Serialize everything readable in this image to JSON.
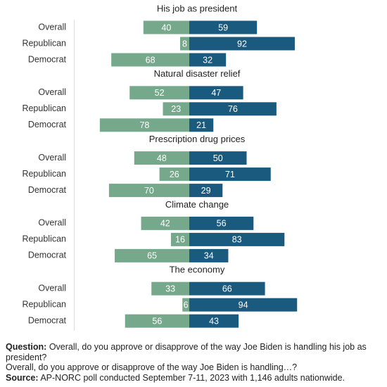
{
  "chart_data": [
    {
      "type": "diverging-bar",
      "title": "His job as president",
      "categories": [
        "Overall",
        "Republican",
        "Democrat"
      ],
      "series": [
        {
          "color": "#76a98b",
          "values": [
            40,
            8,
            68
          ]
        },
        {
          "color": "#1b5a7f",
          "values": [
            59,
            92,
            32
          ]
        }
      ]
    },
    {
      "type": "diverging-bar",
      "title": "Natural disaster relief",
      "categories": [
        "Overall",
        "Republican",
        "Democrat"
      ],
      "series": [
        {
          "color": "#76a98b",
          "values": [
            52,
            23,
            78
          ]
        },
        {
          "color": "#1b5a7f",
          "values": [
            47,
            76,
            21
          ]
        }
      ]
    },
    {
      "type": "diverging-bar",
      "title": "Prescription drug prices",
      "categories": [
        "Overall",
        "Republican",
        "Democrat"
      ],
      "series": [
        {
          "color": "#76a98b",
          "values": [
            48,
            26,
            70
          ]
        },
        {
          "color": "#1b5a7f",
          "values": [
            50,
            71,
            29
          ]
        }
      ]
    },
    {
      "type": "diverging-bar",
      "title": "Climate change",
      "categories": [
        "Overall",
        "Republican",
        "Democrat"
      ],
      "series": [
        {
          "color": "#76a98b",
          "values": [
            42,
            16,
            65
          ]
        },
        {
          "color": "#1b5a7f",
          "values": [
            56,
            83,
            34
          ]
        }
      ]
    },
    {
      "type": "diverging-bar",
      "title": "The economy",
      "categories": [
        "Overall",
        "Republican",
        "Democrat"
      ],
      "series": [
        {
          "color": "#76a98b",
          "values": [
            33,
            6,
            56
          ]
        },
        {
          "color": "#1b5a7f",
          "values": [
            66,
            94,
            43
          ]
        }
      ]
    }
  ],
  "notes": {
    "question_label": "Question:",
    "question_text": "Overall, do you approve or disapprove of the way Joe Biden is handling his job as president?",
    "question_text_2": "Overall, do you approve or disapprove of the way Joe Biden is handling…?",
    "source_label": "Source:",
    "source_text": "AP-NORC poll conducted September 7-11, 2023 with 1,146 adults nationwide."
  }
}
